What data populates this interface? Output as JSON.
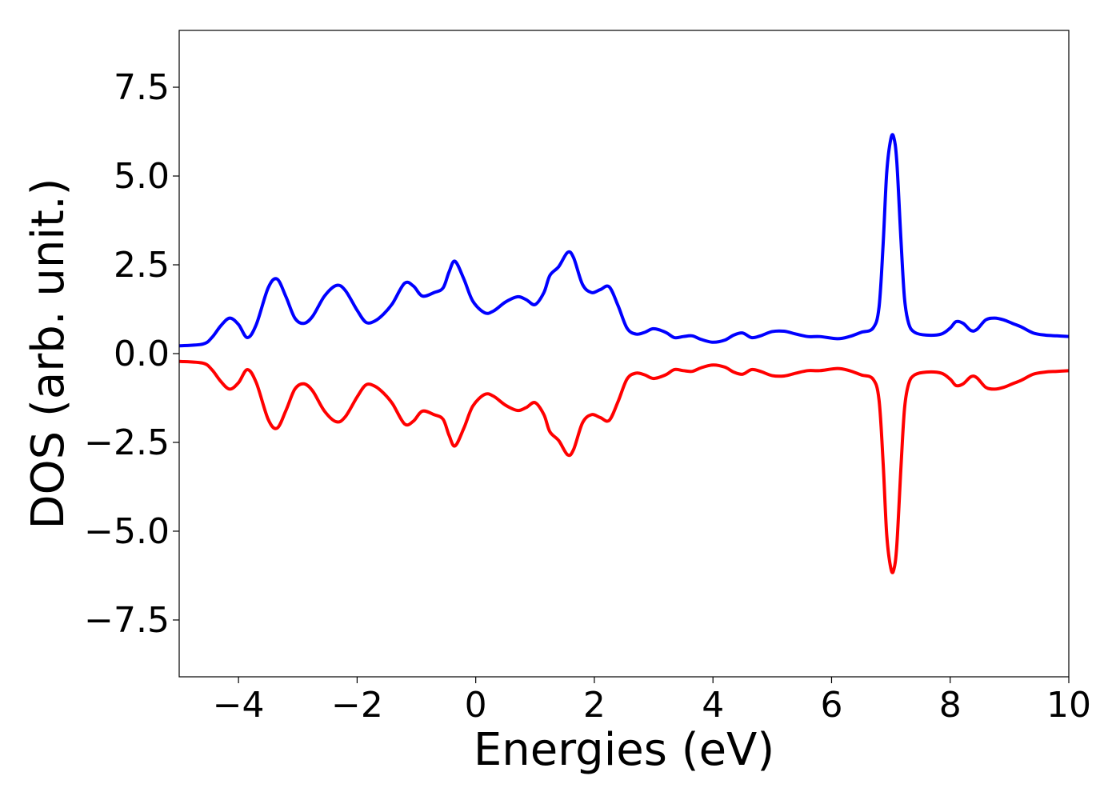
{
  "chart_data": {
    "type": "line",
    "title": "",
    "xlabel": "Energies (eV)",
    "ylabel": "DOS (arb. unit.)",
    "xlim": [
      -5,
      10
    ],
    "ylim": [
      -9.1,
      9.1
    ],
    "x_ticks": [
      -4,
      -2,
      0,
      2,
      4,
      6,
      8,
      10
    ],
    "x_tick_labels": [
      "−4",
      "−2",
      "0",
      "2",
      "4",
      "6",
      "8",
      "10"
    ],
    "y_ticks": [
      -7.5,
      -5.0,
      -2.5,
      0.0,
      2.5,
      5.0,
      7.5
    ],
    "y_tick_labels": [
      "−7.5",
      "−5.0",
      "−2.5",
      "0.0",
      "2.5",
      "5.0",
      "7.5"
    ],
    "grid": false,
    "legend": "none",
    "series": [
      {
        "color": "#0000ff",
        "x": [
          -5.0,
          -4.6,
          -4.45,
          -4.3,
          -4.15,
          -4.0,
          -3.85,
          -3.7,
          -3.5,
          -3.35,
          -3.2,
          -3.05,
          -2.9,
          -2.75,
          -2.55,
          -2.35,
          -2.2,
          -2.0,
          -1.85,
          -1.7,
          -1.55,
          -1.4,
          -1.2,
          -1.05,
          -0.9,
          -0.7,
          -0.55,
          -0.45,
          -0.35,
          -0.2,
          -0.05,
          0.15,
          0.3,
          0.5,
          0.7,
          0.85,
          1.0,
          1.15,
          1.25,
          1.4,
          1.55,
          1.65,
          1.8,
          1.95,
          2.1,
          2.25,
          2.4,
          2.55,
          2.7,
          2.85,
          3.0,
          3.2,
          3.35,
          3.5,
          3.65,
          3.8,
          4.0,
          4.2,
          4.35,
          4.5,
          4.65,
          4.8,
          5.0,
          5.2,
          5.4,
          5.6,
          5.8,
          6.1,
          6.3,
          6.5,
          6.7,
          6.8,
          6.87,
          6.93,
          7.0,
          7.05,
          7.1,
          7.17,
          7.23,
          7.3,
          7.4,
          7.6,
          7.85,
          8.0,
          8.1,
          8.22,
          8.35,
          8.45,
          8.6,
          8.75,
          8.9,
          9.05,
          9.2,
          9.4,
          9.6,
          9.8,
          10.0
        ],
        "y": [
          0.22,
          0.27,
          0.45,
          0.78,
          1.0,
          0.82,
          0.45,
          0.82,
          1.85,
          2.1,
          1.6,
          1.0,
          0.85,
          1.05,
          1.62,
          1.92,
          1.78,
          1.22,
          0.88,
          0.92,
          1.12,
          1.42,
          1.98,
          1.9,
          1.62,
          1.72,
          1.85,
          2.3,
          2.6,
          2.1,
          1.48,
          1.15,
          1.2,
          1.45,
          1.6,
          1.52,
          1.38,
          1.72,
          2.2,
          2.45,
          2.85,
          2.7,
          1.95,
          1.72,
          1.8,
          1.88,
          1.35,
          0.72,
          0.55,
          0.6,
          0.7,
          0.6,
          0.45,
          0.48,
          0.5,
          0.4,
          0.32,
          0.38,
          0.52,
          0.58,
          0.45,
          0.5,
          0.62,
          0.63,
          0.55,
          0.48,
          0.48,
          0.42,
          0.48,
          0.6,
          0.72,
          1.3,
          3.1,
          5.1,
          6.05,
          6.08,
          5.4,
          3.2,
          1.55,
          0.85,
          0.6,
          0.52,
          0.55,
          0.72,
          0.9,
          0.85,
          0.65,
          0.68,
          0.95,
          1.0,
          0.95,
          0.85,
          0.75,
          0.58,
          0.52,
          0.5,
          0.48
        ]
      },
      {
        "color": "#ff0000",
        "x": [
          -5.0,
          -4.6,
          -4.45,
          -4.3,
          -4.15,
          -4.0,
          -3.85,
          -3.7,
          -3.5,
          -3.35,
          -3.2,
          -3.05,
          -2.9,
          -2.75,
          -2.55,
          -2.35,
          -2.2,
          -2.0,
          -1.85,
          -1.7,
          -1.55,
          -1.4,
          -1.2,
          -1.05,
          -0.9,
          -0.7,
          -0.55,
          -0.45,
          -0.35,
          -0.2,
          -0.05,
          0.15,
          0.3,
          0.5,
          0.7,
          0.85,
          1.0,
          1.15,
          1.25,
          1.4,
          1.55,
          1.65,
          1.8,
          1.95,
          2.1,
          2.25,
          2.4,
          2.55,
          2.7,
          2.85,
          3.0,
          3.2,
          3.35,
          3.5,
          3.65,
          3.8,
          4.0,
          4.2,
          4.35,
          4.5,
          4.65,
          4.8,
          5.0,
          5.2,
          5.4,
          5.6,
          5.8,
          6.1,
          6.3,
          6.5,
          6.7,
          6.8,
          6.87,
          6.93,
          7.0,
          7.05,
          7.1,
          7.17,
          7.23,
          7.3,
          7.4,
          7.6,
          7.85,
          8.0,
          8.1,
          8.22,
          8.35,
          8.45,
          8.6,
          8.75,
          8.9,
          9.05,
          9.2,
          9.4,
          9.6,
          9.8,
          10.0
        ],
        "y": [
          -0.22,
          -0.27,
          -0.45,
          -0.78,
          -1.0,
          -0.82,
          -0.45,
          -0.82,
          -1.85,
          -2.1,
          -1.6,
          -1.0,
          -0.85,
          -1.05,
          -1.62,
          -1.92,
          -1.78,
          -1.22,
          -0.88,
          -0.92,
          -1.12,
          -1.42,
          -1.98,
          -1.9,
          -1.62,
          -1.72,
          -1.85,
          -2.3,
          -2.6,
          -2.1,
          -1.48,
          -1.15,
          -1.2,
          -1.45,
          -1.6,
          -1.52,
          -1.38,
          -1.72,
          -2.2,
          -2.45,
          -2.85,
          -2.7,
          -1.95,
          -1.72,
          -1.8,
          -1.88,
          -1.35,
          -0.72,
          -0.55,
          -0.6,
          -0.7,
          -0.6,
          -0.45,
          -0.48,
          -0.5,
          -0.4,
          -0.32,
          -0.38,
          -0.52,
          -0.58,
          -0.45,
          -0.5,
          -0.62,
          -0.63,
          -0.55,
          -0.48,
          -0.48,
          -0.42,
          -0.48,
          -0.6,
          -0.72,
          -1.3,
          -3.1,
          -5.1,
          -6.05,
          -6.08,
          -5.4,
          -3.2,
          -1.55,
          -0.85,
          -0.6,
          -0.52,
          -0.55,
          -0.72,
          -0.9,
          -0.85,
          -0.65,
          -0.68,
          -0.95,
          -1.0,
          -0.95,
          -0.85,
          -0.75,
          -0.58,
          -0.52,
          -0.5,
          -0.48
        ]
      }
    ]
  }
}
